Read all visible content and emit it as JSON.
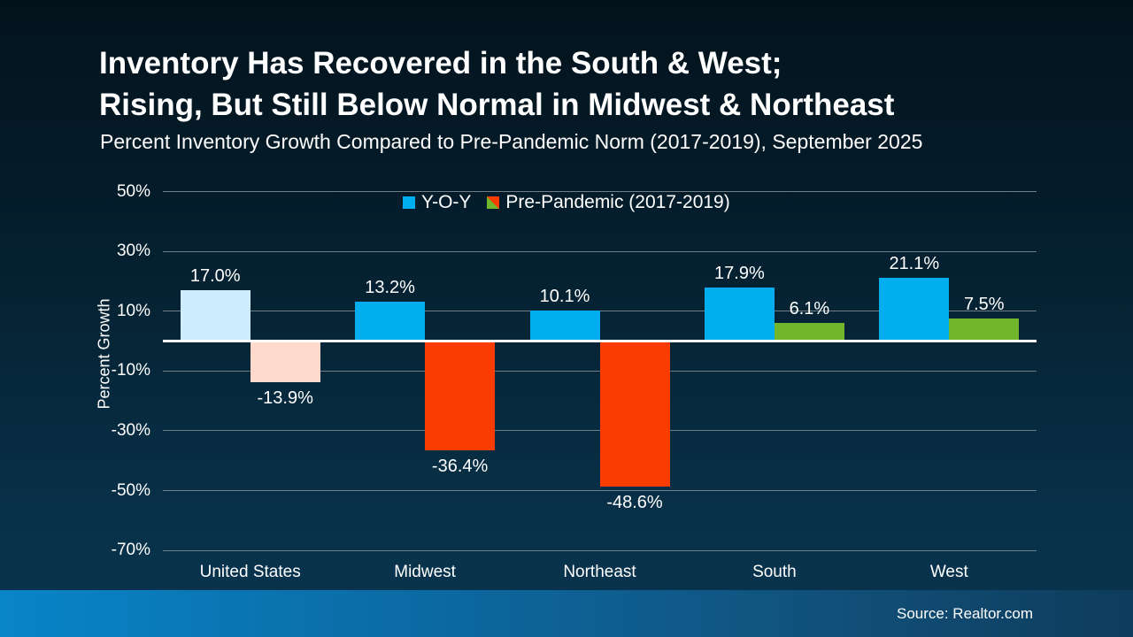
{
  "slide": {
    "title_line1": "Inventory Has Recovered in the South & West;",
    "title_line2": "Rising, But Still Below Normal in Midwest & Northeast",
    "subtitle": "Percent Inventory Growth Compared to Pre-Pandemic Norm (2017-2019), September 2025",
    "source": "Source: Realtor.com"
  },
  "colors": {
    "yoy_blue": "#00aeef",
    "yoy_blue_muted_us": "#cdecfd",
    "pre_pandemic_red": "#fb3c00",
    "pre_pandemic_red_muted_us": "#ffd9cc",
    "pre_pandemic_green": "#72b62c",
    "zero_line": "#ffffff",
    "gridline": "#6f7d86",
    "footer_left": "#0885c8",
    "footer_right": "#0e3c5c"
  },
  "chart_data": {
    "type": "bar",
    "title": "Inventory Has Recovered in the South & West; Rising, But Still Below Normal in Midwest & Northeast",
    "subtitle": "Percent Inventory Growth Compared to Pre-Pandemic Norm (2017-2019), September 2025",
    "xlabel": "",
    "ylabel": "Percent Growth",
    "ylim": [
      -70,
      50
    ],
    "yticks": [
      50,
      30,
      10,
      -10,
      -30,
      -50,
      -70
    ],
    "ytick_labels": [
      "50%",
      "30%",
      "10%",
      "-10%",
      "-30%",
      "-50%",
      "-70%"
    ],
    "grid": true,
    "legend_position": "top-center",
    "categories": [
      "United States",
      "Midwest",
      "Northeast",
      "South",
      "West"
    ],
    "series": [
      {
        "name": "Y-O-Y",
        "values": [
          17.0,
          13.2,
          10.1,
          17.9,
          21.1
        ],
        "bar_colors": [
          "#cdecfd",
          "#00aeef",
          "#00aeef",
          "#00aeef",
          "#00aeef"
        ]
      },
      {
        "name": "Pre-Pandemic (2017-2019)",
        "values": [
          -13.9,
          -36.4,
          -48.6,
          6.1,
          7.5
        ],
        "bar_colors": [
          "#ffd9cc",
          "#fb3c00",
          "#fb3c00",
          "#72b62c",
          "#72b62c"
        ]
      }
    ],
    "value_labels": [
      "17.0%",
      "13.2%",
      "10.1%",
      "17.9%",
      "21.1%",
      "-13.9%",
      "-36.4%",
      "-48.6%",
      "6.1%",
      "7.5%"
    ]
  }
}
